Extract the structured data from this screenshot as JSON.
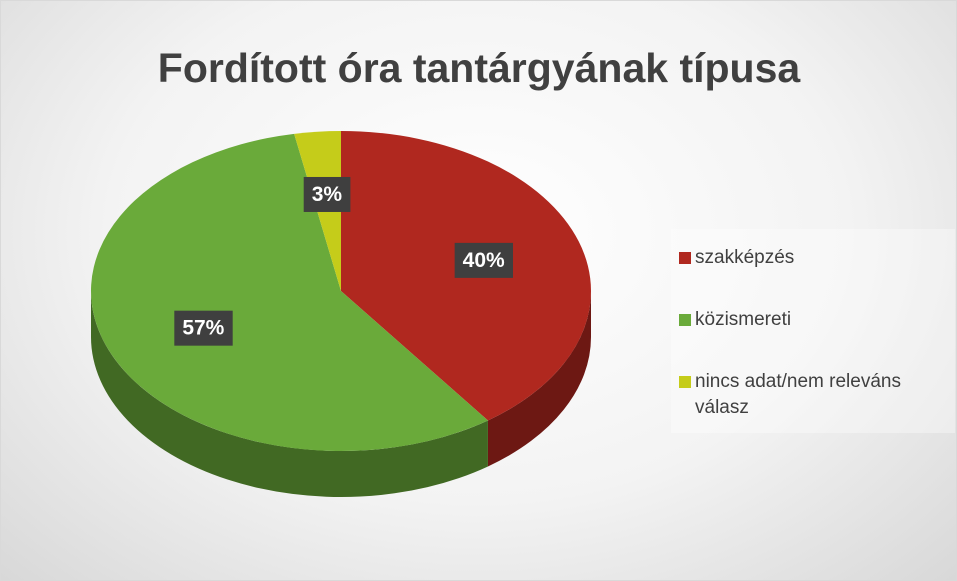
{
  "chart_data": {
    "type": "pie",
    "title": "Fordított óra tantárgyának típusa",
    "categories": [
      "szakképzés",
      "közismereti",
      "nincs adat/nem releváns válasz"
    ],
    "values": [
      40,
      57,
      3
    ],
    "value_labels": [
      "40%",
      "57%",
      "3%"
    ],
    "colors": [
      "#b0281f",
      "#6aaa3a",
      "#c5cc1a"
    ],
    "legend": "right"
  }
}
